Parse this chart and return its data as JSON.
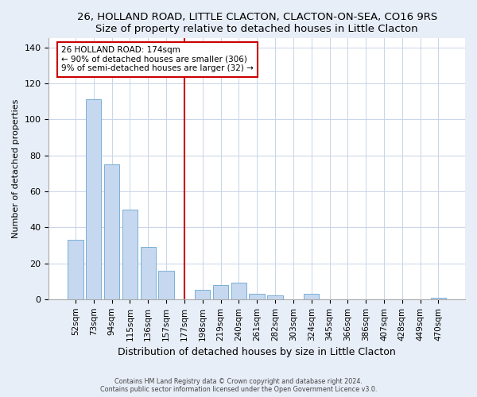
{
  "title": "26, HOLLAND ROAD, LITTLE CLACTON, CLACTON-ON-SEA, CO16 9RS",
  "subtitle": "Size of property relative to detached houses in Little Clacton",
  "xlabel": "Distribution of detached houses by size in Little Clacton",
  "ylabel": "Number of detached properties",
  "bar_labels": [
    "52sqm",
    "73sqm",
    "94sqm",
    "115sqm",
    "136sqm",
    "157sqm",
    "177sqm",
    "198sqm",
    "219sqm",
    "240sqm",
    "261sqm",
    "282sqm",
    "303sqm",
    "324sqm",
    "345sqm",
    "366sqm",
    "386sqm",
    "407sqm",
    "428sqm",
    "449sqm",
    "470sqm"
  ],
  "bar_values": [
    33,
    111,
    75,
    50,
    29,
    16,
    0,
    5,
    8,
    9,
    3,
    2,
    0,
    3,
    0,
    0,
    0,
    0,
    0,
    0,
    1
  ],
  "bar_color": "#c5d8f0",
  "bar_edge_color": "#7aafd4",
  "vline_color": "#cc0000",
  "annotation_title": "26 HOLLAND ROAD: 174sqm",
  "annotation_line1": "← 90% of detached houses are smaller (306)",
  "annotation_line2": "9% of semi-detached houses are larger (32) →",
  "annotation_box_edge": "#cc0000",
  "ylim": [
    0,
    145
  ],
  "yticks": [
    0,
    20,
    40,
    60,
    80,
    100,
    120,
    140
  ],
  "footer1": "Contains HM Land Registry data © Crown copyright and database right 2024.",
  "footer2": "Contains public sector information licensed under the Open Government Licence v3.0.",
  "bg_color": "#e8eef8",
  "plot_bg_color": "#ffffff",
  "grid_color": "#c8d4e8"
}
